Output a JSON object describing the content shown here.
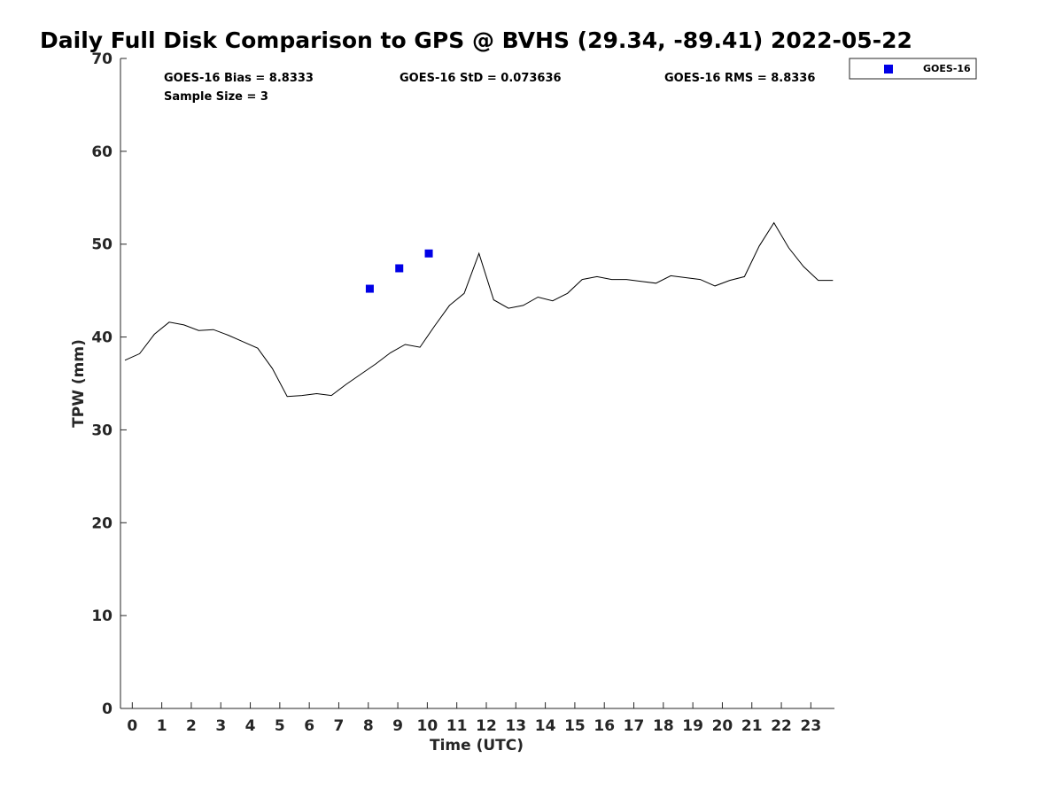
{
  "chart_data": {
    "type": "line",
    "title": "Daily Full Disk Comparison to GPS @ BVHS (29.34, -89.41) 2022-05-22",
    "xlabel": "Time (UTC)",
    "ylabel": "TPW (mm)",
    "xlim": [
      -0.4,
      23.8
    ],
    "ylim": [
      0,
      70
    ],
    "xticks": [
      0,
      1,
      2,
      3,
      4,
      5,
      6,
      7,
      8,
      9,
      10,
      11,
      12,
      13,
      14,
      15,
      16,
      17,
      18,
      19,
      20,
      21,
      22,
      23
    ],
    "yticks": [
      0,
      10,
      20,
      30,
      40,
      50,
      60,
      70
    ],
    "grid": false,
    "stats": {
      "bias": "GOES-16 Bias = 8.8333",
      "std": "GOES-16 StD = 0.073636",
      "rms": "GOES-16 RMS = 8.8336",
      "sample": "Sample Size = 3"
    },
    "legend": {
      "position": "top-right",
      "entries": [
        "GOES-16"
      ]
    },
    "series": [
      {
        "kind": "line",
        "color": "#000000",
        "x": [
          -0.25,
          0.25,
          0.75,
          1.25,
          1.75,
          2.25,
          2.75,
          3.25,
          3.75,
          4.25,
          4.75,
          5.25,
          5.75,
          6.25,
          6.75,
          7.25,
          7.75,
          8.25,
          8.75,
          9.25,
          9.75,
          10.25,
          10.75,
          11.25,
          11.75,
          12.25,
          12.75,
          13.25,
          13.75,
          14.25,
          14.75,
          15.25,
          15.75,
          16.25,
          16.75,
          17.25,
          17.75,
          18.25,
          18.75,
          19.25,
          19.75,
          20.25,
          20.75,
          21.25,
          21.75,
          22.25,
          22.75,
          23.25,
          23.75
        ],
        "y": [
          37.5,
          38.2,
          40.3,
          41.6,
          41.3,
          40.7,
          40.8,
          40.2,
          39.5,
          38.8,
          36.6,
          33.6,
          33.7,
          33.9,
          33.7,
          34.9,
          36.0,
          37.1,
          38.3,
          39.2,
          38.9,
          41.2,
          43.4,
          44.7,
          49.0,
          44.0,
          43.1,
          43.4,
          44.3,
          43.9,
          44.7,
          46.2,
          46.5,
          46.2,
          46.2,
          46.0,
          45.8,
          46.6,
          46.4,
          46.2,
          45.5,
          46.1,
          46.5,
          49.8,
          52.3,
          49.6,
          47.6,
          46.1,
          46.1
        ]
      },
      {
        "kind": "scatter",
        "name": "GOES-16",
        "color": "#0000e6",
        "x": [
          8.05,
          9.05,
          10.05
        ],
        "y": [
          45.2,
          47.4,
          49.0
        ]
      }
    ]
  }
}
